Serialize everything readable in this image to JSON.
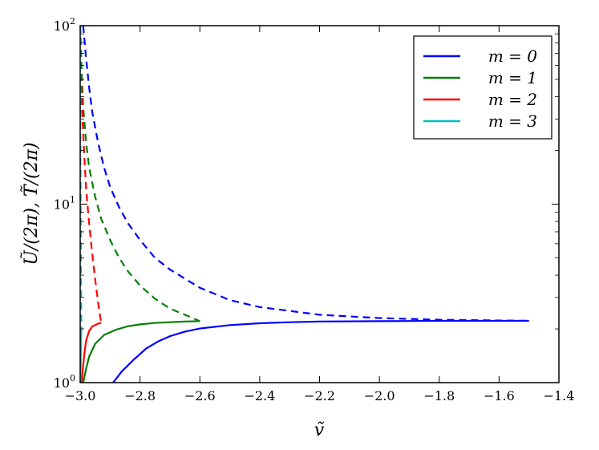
{
  "chart_data": {
    "type": "line",
    "title": "",
    "xlabel": "ṽ",
    "ylabel": "Ũ/(2π), T̃/(2π)",
    "xlim": [
      -3.0,
      -1.4
    ],
    "ylim": [
      1,
      100
    ],
    "yscale": "log",
    "grid": false,
    "legend_position": "top-right",
    "x_ticks": [
      -3.0,
      -2.8,
      -2.6,
      -2.4,
      -2.2,
      -2.0,
      -1.8,
      -1.6,
      -1.4
    ],
    "x_tick_labels": [
      "−3.0",
      "−2.8",
      "−2.6",
      "−2.4",
      "−2.2",
      "−2.0",
      "−1.8",
      "−1.6",
      "−1.4"
    ],
    "y_ticks": [
      {
        "value": 1,
        "base": "10",
        "exp": "0"
      },
      {
        "value": 10,
        "base": "10",
        "exp": "1"
      },
      {
        "value": 100,
        "base": "10",
        "exp": "2"
      }
    ],
    "series": [
      {
        "name": "m = 0",
        "color": "#0000ff",
        "solid": {
          "x": [
            -2.89,
            -2.86,
            -2.82,
            -2.78,
            -2.74,
            -2.7,
            -2.65,
            -2.6,
            -2.5,
            -2.4,
            -2.3,
            -2.2,
            -2.0,
            -1.8,
            -1.6,
            -1.5
          ],
          "y": [
            1.0,
            1.16,
            1.35,
            1.55,
            1.7,
            1.82,
            1.93,
            2.01,
            2.1,
            2.15,
            2.18,
            2.2,
            2.21,
            2.22,
            2.22,
            2.22
          ]
        },
        "dashed": {
          "x": [
            -2.99,
            -2.98,
            -2.97,
            -2.96,
            -2.94,
            -2.92,
            -2.9,
            -2.87,
            -2.84,
            -2.8,
            -2.75,
            -2.7,
            -2.6,
            -2.5,
            -2.4,
            -2.2,
            -2.0,
            -1.8,
            -1.5
          ],
          "y": [
            100,
            65,
            45,
            33,
            22,
            16,
            12.5,
            9.6,
            7.8,
            6.3,
            5.0,
            4.3,
            3.4,
            2.9,
            2.65,
            2.4,
            2.3,
            2.25,
            2.22
          ]
        }
      },
      {
        "name": "m = 1",
        "color": "#008000",
        "solid": {
          "x": [
            -2.99,
            -2.98,
            -2.97,
            -2.95,
            -2.92,
            -2.88,
            -2.84,
            -2.8,
            -2.75,
            -2.7,
            -2.65,
            -2.6
          ],
          "y": [
            1.0,
            1.2,
            1.4,
            1.65,
            1.85,
            1.98,
            2.07,
            2.12,
            2.16,
            2.18,
            2.2,
            2.21
          ]
        },
        "dashed": {
          "x": [
            -3.0,
            -2.995,
            -2.99,
            -2.98,
            -2.97,
            -2.95,
            -2.93,
            -2.9,
            -2.87,
            -2.84,
            -2.8,
            -2.75,
            -2.7,
            -2.65,
            -2.6
          ],
          "y": [
            100,
            55,
            35,
            22,
            16,
            11,
            8.3,
            6.3,
            5.0,
            4.2,
            3.5,
            2.95,
            2.6,
            2.4,
            2.21
          ]
        }
      },
      {
        "name": "m = 2",
        "color": "#ff0000",
        "solid": {
          "x": [
            -2.995,
            -2.99,
            -2.985,
            -2.98,
            -2.97,
            -2.96,
            -2.95,
            -2.94,
            -2.93
          ],
          "y": [
            1.0,
            1.25,
            1.5,
            1.72,
            1.95,
            2.06,
            2.1,
            2.14,
            2.16
          ]
        },
        "dashed": {
          "x": [
            -3.0,
            -2.998,
            -2.995,
            -2.99,
            -2.985,
            -2.98,
            -2.97,
            -2.96,
            -2.95,
            -2.94,
            -2.93
          ],
          "y": [
            100,
            60,
            40,
            25,
            17,
            12,
            7.8,
            5.3,
            3.8,
            2.8,
            2.16
          ]
        }
      },
      {
        "name": "m = 3",
        "color": "#00bfbf",
        "solid": {
          "x": [
            -2.999,
            -2.998,
            -2.997,
            -2.996
          ],
          "y": [
            1.0,
            1.3,
            1.7,
            2.05
          ]
        },
        "dashed": {
          "x": [
            -3.0,
            -2.9995,
            -2.999,
            -2.998,
            -2.997,
            -2.996
          ],
          "y": [
            100,
            40,
            18,
            8,
            3.8,
            2.05
          ]
        }
      }
    ]
  }
}
